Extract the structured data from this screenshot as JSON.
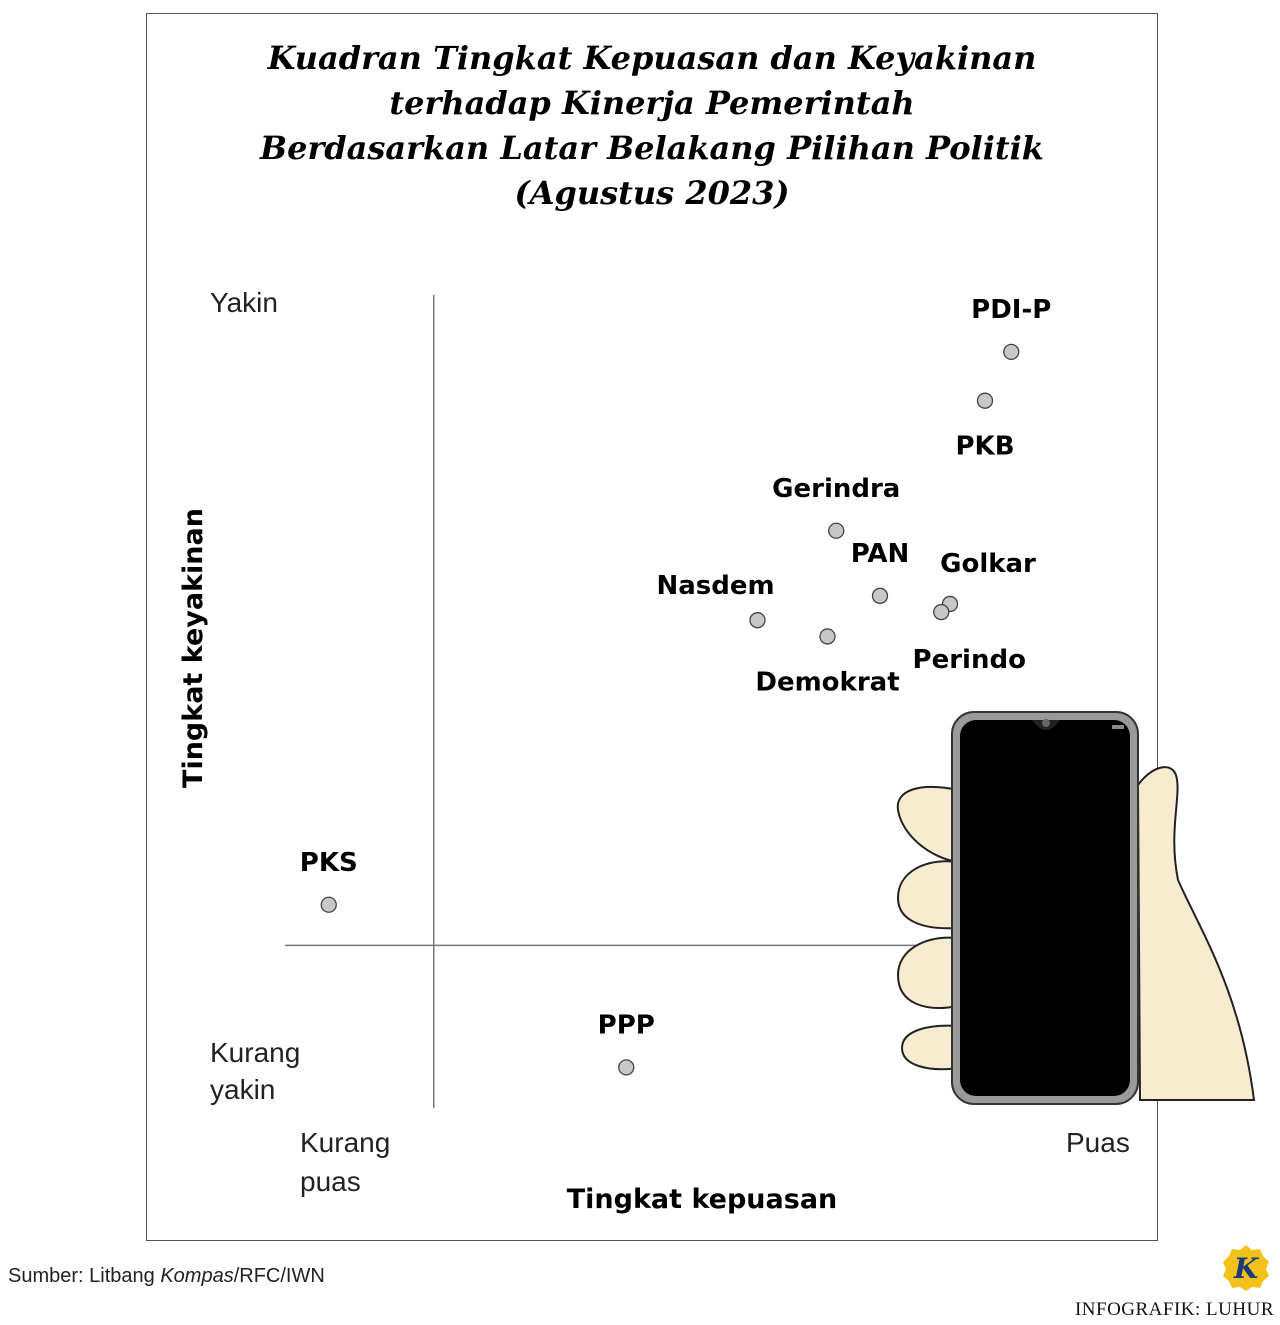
{
  "title_lines": [
    "Kuadran Tingkat Kepuasan dan Keyakinan",
    "terhadap Kinerja Pemerintah",
    "Berdasarkan Latar Belakang Pilihan Politik",
    "(Agustus 2023)"
  ],
  "chart_data": {
    "type": "scatter",
    "title": "Kuadran Tingkat Kepuasan dan Keyakinan terhadap Kinerja Pemerintah Berdasarkan Latar Belakang Pilihan Politik (Agustus 2023)",
    "xlabel": "Tingkat kepuasan",
    "ylabel": "Tingkat keyakinan",
    "x_low_label": [
      "Kurang",
      "puas"
    ],
    "x_high_label": "Puas",
    "y_high_label": "Yakin",
    "y_low_label": [
      "Kurang",
      "yakin"
    ],
    "grid": false,
    "xlim": [
      0,
      100
    ],
    "ylim": [
      0,
      100
    ],
    "quadrant_divider": {
      "x": 17,
      "y": 20
    },
    "points": [
      {
        "label": "PDI-P",
        "x": 83,
        "y": 93,
        "label_pos": "above"
      },
      {
        "label": "PKB",
        "x": 80,
        "y": 87,
        "label_pos": "below"
      },
      {
        "label": "Gerindra",
        "x": 63,
        "y": 71,
        "label_pos": "above"
      },
      {
        "label": "PAN",
        "x": 68,
        "y": 63,
        "label_pos": "above"
      },
      {
        "label": "Golkar",
        "x": 76,
        "y": 62,
        "label_pos": "above-right"
      },
      {
        "label": "Perindo",
        "x": 75,
        "y": 61,
        "label_pos": "below-right"
      },
      {
        "label": "Nasdem",
        "x": 54,
        "y": 60,
        "label_pos": "above-left"
      },
      {
        "label": "Demokrat",
        "x": 62,
        "y": 58,
        "label_pos": "below"
      },
      {
        "label": "PKS",
        "x": 5,
        "y": 25,
        "label_pos": "above"
      },
      {
        "label": "PPP",
        "x": 39,
        "y": 5,
        "label_pos": "above"
      }
    ],
    "point_color": "#c8c8c8"
  },
  "source": {
    "prefix": "Sumber: Litbang ",
    "italic": "Kompas",
    "suffix": "/RFC/IWN"
  },
  "logo_letter": "K",
  "credit": "INFOGRAFIK: LUHUR",
  "colors": {
    "logo_fill": "#f2c21b",
    "logo_letter": "#1a3a7a",
    "hand": "#f7ecd0",
    "phone": "#000000"
  }
}
